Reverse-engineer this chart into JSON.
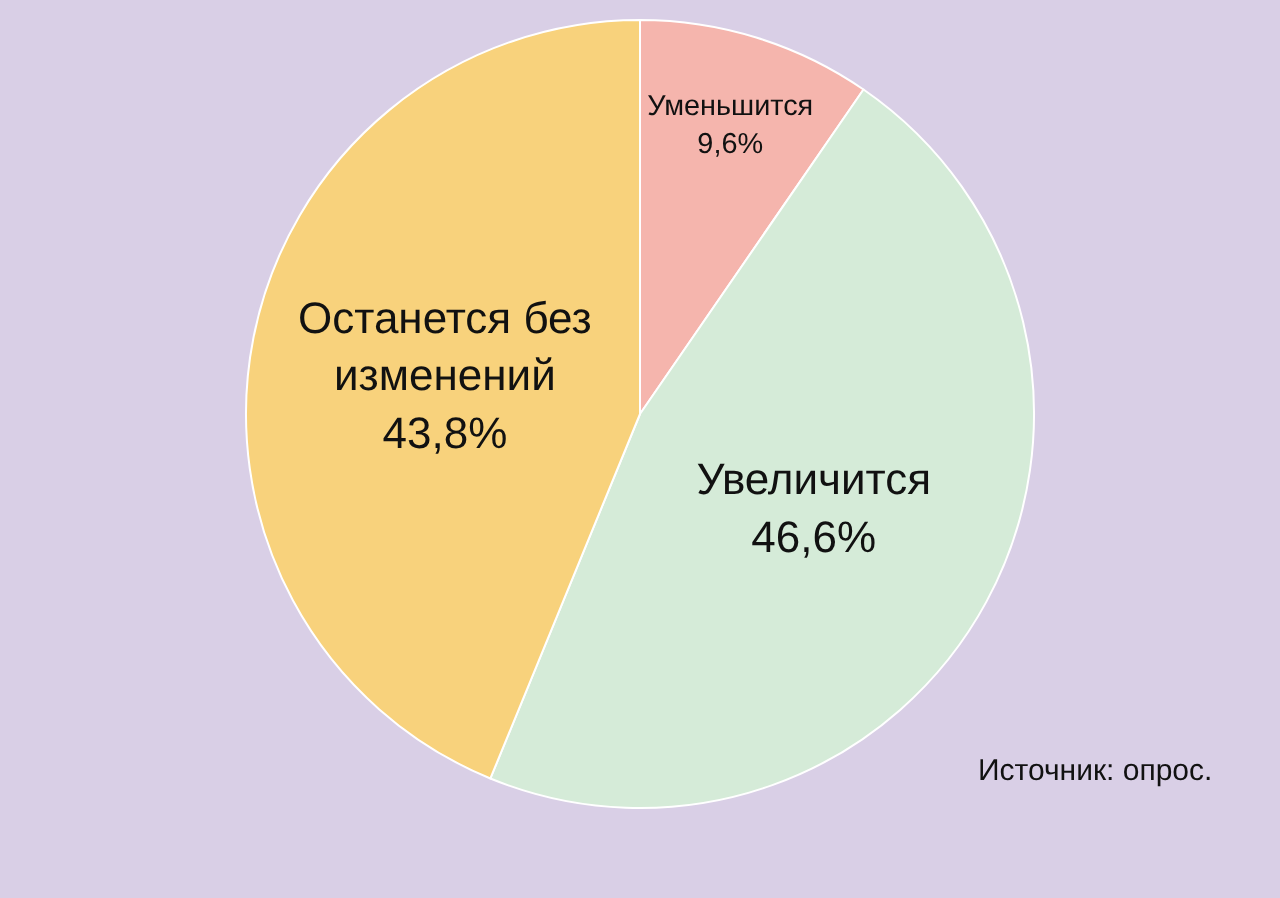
{
  "chart_data": {
    "type": "pie",
    "categories": [
      "Уменьшится",
      "Увеличится",
      "Останется без изменений"
    ],
    "values": [
      9.6,
      46.6,
      43.8
    ],
    "value_labels": [
      "9,6%",
      "46,6%",
      "43,8%"
    ],
    "colors": [
      "#f5b5ad",
      "#d5ebd8",
      "#f8d27c"
    ],
    "annotations": [
      "Источник: опрос."
    ],
    "legend": false
  }
}
